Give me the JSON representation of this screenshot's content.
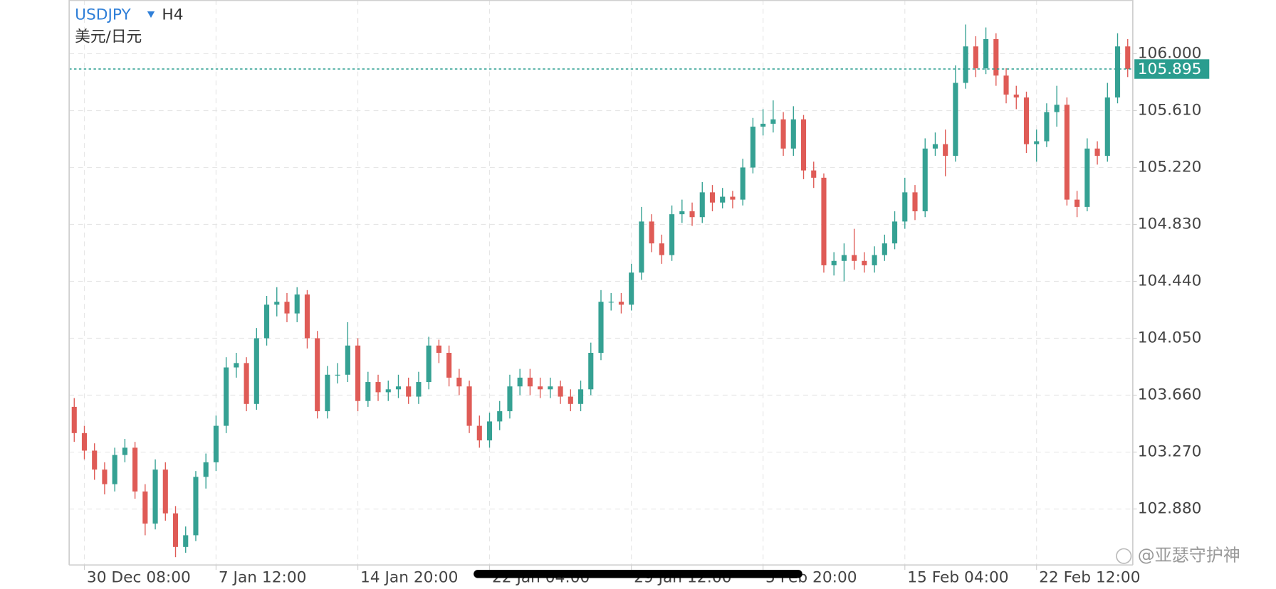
{
  "chart_data": {
    "type": "candlestick",
    "title": "USDJPY",
    "interval": "H4",
    "subtitle": "美元/日元",
    "watermark": "@亚瑟守护神",
    "up_color": "#35a193",
    "down_color": "#df5b56",
    "grid": true,
    "ylim": [
      102.496,
      106.368
    ],
    "yticks": [
      {
        "value": 102.88,
        "label": "102.880"
      },
      {
        "value": 103.27,
        "label": "103.270"
      },
      {
        "value": 103.66,
        "label": "103.660"
      },
      {
        "value": 104.05,
        "label": "104.050"
      },
      {
        "value": 104.44,
        "label": "104.440"
      },
      {
        "value": 104.83,
        "label": "104.830"
      },
      {
        "value": 105.22,
        "label": "105.220"
      },
      {
        "value": 105.61,
        "label": "105.610"
      },
      {
        "value": 106,
        "label": "106.000"
      }
    ],
    "categories": [
      null,
      "30 Dec 08:00",
      null,
      null,
      null,
      null,
      null,
      null,
      null,
      null,
      null,
      null,
      null,
      null,
      "7 Jan 12:00",
      null,
      null,
      null,
      null,
      null,
      null,
      null,
      null,
      null,
      null,
      null,
      null,
      null,
      "14 Jan 20:00",
      null,
      null,
      null,
      null,
      null,
      null,
      null,
      null,
      null,
      null,
      null,
      null,
      "22 Jan 04:00",
      null,
      null,
      null,
      null,
      null,
      null,
      null,
      null,
      null,
      null,
      null,
      null,
      null,
      "29 Jan 12:00",
      null,
      null,
      null,
      null,
      null,
      null,
      null,
      null,
      null,
      null,
      null,
      null,
      "5 Feb 20:00",
      null,
      null,
      null,
      null,
      null,
      null,
      null,
      null,
      null,
      null,
      null,
      null,
      null,
      "15 Feb 04:00",
      null,
      null,
      null,
      null,
      null,
      null,
      null,
      null,
      null,
      null,
      null,
      null,
      "22 Feb 12:00",
      null,
      null,
      null,
      null,
      null,
      null,
      null,
      null,
      null
    ],
    "open": [
      103.58,
      103.4,
      103.28,
      103.15,
      103.05,
      103.25,
      103.3,
      103.0,
      102.78,
      103.15,
      102.85,
      102.62,
      102.7,
      103.1,
      103.2,
      103.45,
      103.85,
      103.88,
      103.6,
      104.05,
      104.28,
      104.3,
      104.22,
      104.35,
      104.05,
      103.55,
      103.8,
      103.8,
      104.0,
      103.62,
      103.75,
      103.68,
      103.7,
      103.72,
      103.65,
      103.75,
      104.0,
      103.95,
      103.78,
      103.72,
      103.45,
      103.35,
      103.48,
      103.55,
      103.72,
      103.78,
      103.72,
      103.7,
      103.72,
      103.65,
      103.6,
      103.7,
      103.95,
      104.3,
      104.3,
      104.28,
      104.5,
      104.85,
      104.7,
      104.62,
      104.9,
      104.92,
      104.88,
      105.05,
      104.98,
      105.02,
      105.0,
      105.22,
      105.5,
      105.52,
      105.55,
      105.35,
      105.55,
      105.2,
      105.15,
      104.55,
      104.58,
      104.62,
      104.58,
      104.55,
      104.62,
      104.7,
      104.85,
      105.05,
      104.92,
      105.35,
      105.38,
      105.3,
      105.8,
      106.05,
      105.9,
      106.1,
      105.85,
      105.72,
      105.7,
      105.38,
      105.4,
      105.6,
      105.65,
      105.0,
      104.95,
      105.35,
      105.3,
      105.7,
      106.05
    ],
    "high": [
      103.64,
      103.45,
      103.33,
      103.2,
      103.3,
      103.36,
      103.34,
      103.05,
      103.22,
      103.2,
      102.9,
      102.76,
      103.14,
      103.26,
      103.52,
      103.92,
      103.95,
      103.92,
      104.12,
      104.34,
      104.4,
      104.36,
      104.4,
      104.38,
      104.1,
      103.86,
      103.88,
      104.16,
      104.05,
      103.82,
      103.8,
      103.76,
      103.8,
      103.78,
      103.82,
      104.06,
      104.04,
      104.0,
      103.84,
      103.76,
      103.52,
      103.54,
      103.62,
      103.8,
      103.84,
      103.84,
      103.78,
      103.78,
      103.76,
      103.7,
      103.76,
      104.02,
      104.38,
      104.36,
      104.36,
      104.56,
      104.95,
      104.9,
      104.76,
      104.96,
      105.0,
      104.98,
      105.12,
      105.1,
      105.08,
      105.06,
      105.28,
      105.56,
      105.62,
      105.68,
      105.6,
      105.64,
      105.58,
      105.26,
      105.18,
      104.64,
      104.7,
      104.8,
      104.64,
      104.68,
      104.76,
      104.92,
      105.15,
      105.1,
      105.42,
      105.46,
      105.48,
      105.92,
      106.2,
      106.12,
      106.18,
      106.14,
      105.9,
      105.78,
      105.74,
      105.48,
      105.66,
      105.78,
      105.7,
      105.06,
      105.42,
      105.4,
      105.8,
      106.14,
      106.1
    ],
    "low": [
      103.34,
      103.22,
      103.08,
      102.98,
      103.0,
      103.2,
      102.95,
      102.7,
      102.74,
      102.8,
      102.55,
      102.58,
      102.66,
      103.02,
      103.14,
      103.4,
      103.78,
      103.55,
      103.56,
      104.0,
      104.2,
      104.16,
      104.16,
      103.98,
      103.5,
      103.5,
      103.74,
      103.75,
      103.55,
      103.58,
      103.62,
      103.62,
      103.64,
      103.6,
      103.6,
      103.7,
      103.88,
      103.72,
      103.66,
      103.4,
      103.3,
      103.3,
      103.42,
      103.5,
      103.66,
      103.66,
      103.64,
      103.64,
      103.6,
      103.55,
      103.55,
      103.66,
      103.9,
      104.24,
      104.22,
      104.24,
      104.45,
      104.64,
      104.56,
      104.58,
      104.84,
      104.82,
      104.84,
      104.92,
      104.94,
      104.94,
      104.96,
      105.18,
      105.44,
      105.46,
      105.3,
      105.3,
      105.14,
      105.08,
      104.5,
      104.48,
      104.44,
      104.52,
      104.5,
      104.5,
      104.58,
      104.66,
      104.8,
      104.86,
      104.88,
      105.3,
      105.16,
      105.26,
      105.76,
      105.84,
      105.86,
      105.78,
      105.66,
      105.62,
      105.32,
      105.26,
      105.36,
      105.5,
      104.96,
      104.88,
      104.92,
      105.24,
      105.26,
      105.66,
      105.84
    ],
    "close": [
      103.4,
      103.28,
      103.15,
      103.05,
      103.25,
      103.3,
      103.0,
      102.78,
      103.15,
      102.85,
      102.62,
      102.7,
      103.1,
      103.2,
      103.45,
      103.85,
      103.88,
      103.6,
      104.05,
      104.28,
      104.3,
      104.22,
      104.35,
      104.05,
      103.55,
      103.8,
      103.8,
      104.0,
      103.62,
      103.75,
      103.68,
      103.7,
      103.72,
      103.65,
      103.75,
      104.0,
      103.95,
      103.78,
      103.72,
      103.45,
      103.35,
      103.48,
      103.55,
      103.72,
      103.78,
      103.72,
      103.7,
      103.72,
      103.65,
      103.6,
      103.7,
      103.95,
      104.3,
      104.3,
      104.28,
      104.5,
      104.85,
      104.7,
      104.62,
      104.9,
      104.92,
      104.88,
      105.05,
      104.98,
      105.02,
      105.0,
      105.22,
      105.5,
      105.52,
      105.55,
      105.35,
      105.55,
      105.2,
      105.15,
      104.55,
      104.58,
      104.62,
      104.58,
      104.55,
      104.62,
      104.7,
      104.85,
      105.05,
      104.92,
      105.35,
      105.38,
      105.3,
      105.8,
      106.05,
      105.9,
      106.1,
      105.85,
      105.72,
      105.7,
      105.38,
      105.4,
      105.6,
      105.65,
      105.0,
      104.95,
      105.35,
      105.3,
      105.7,
      106.05,
      105.895
    ]
  }
}
